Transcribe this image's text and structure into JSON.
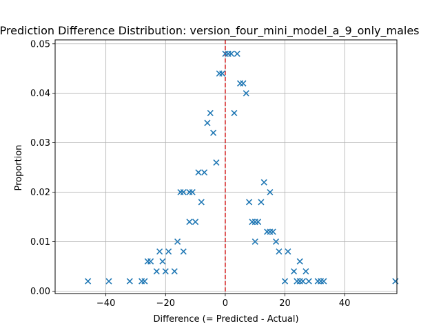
{
  "chart_data": {
    "type": "scatter",
    "title": "Prediction Difference Distribution: version_four_mini_model_a_9_only_males",
    "xlabel": "Difference (= Predicted - Actual)",
    "ylabel": "Proportion",
    "xlim": [
      -57,
      57.5
    ],
    "ylim": [
      -0.0005,
      0.0508
    ],
    "xticks": [
      -40,
      -20,
      0,
      20,
      40
    ],
    "yticks": [
      0.0,
      0.01,
      0.02,
      0.03,
      0.04,
      0.05
    ],
    "ytick_labels": [
      "0.00",
      "0.01",
      "0.02",
      "0.03",
      "0.04",
      "0.05"
    ],
    "grid": true,
    "marker": "x",
    "color": "#1f77b4",
    "reference_line": {
      "x": 0,
      "color": "#d62728",
      "style": "dashed"
    },
    "points": [
      {
        "x": -46,
        "y": 0.002
      },
      {
        "x": -39,
        "y": 0.002
      },
      {
        "x": -32,
        "y": 0.002
      },
      {
        "x": -28,
        "y": 0.002
      },
      {
        "x": -27,
        "y": 0.002
      },
      {
        "x": -26,
        "y": 0.006
      },
      {
        "x": -25,
        "y": 0.006
      },
      {
        "x": -23,
        "y": 0.004
      },
      {
        "x": -22,
        "y": 0.008
      },
      {
        "x": -21,
        "y": 0.006
      },
      {
        "x": -20,
        "y": 0.004
      },
      {
        "x": -19,
        "y": 0.008
      },
      {
        "x": -17,
        "y": 0.004
      },
      {
        "x": -16,
        "y": 0.01
      },
      {
        "x": -15,
        "y": 0.02
      },
      {
        "x": -14,
        "y": 0.008
      },
      {
        "x": -14,
        "y": 0.02
      },
      {
        "x": -12,
        "y": 0.02
      },
      {
        "x": -12,
        "y": 0.014
      },
      {
        "x": -11,
        "y": 0.02
      },
      {
        "x": -10,
        "y": 0.014
      },
      {
        "x": -9,
        "y": 0.024
      },
      {
        "x": -8,
        "y": 0.018
      },
      {
        "x": -7,
        "y": 0.024
      },
      {
        "x": -6,
        "y": 0.034
      },
      {
        "x": -5,
        "y": 0.036
      },
      {
        "x": -4,
        "y": 0.032
      },
      {
        "x": -3,
        "y": 0.026
      },
      {
        "x": -2,
        "y": 0.044
      },
      {
        "x": -1,
        "y": 0.044
      },
      {
        "x": 0,
        "y": 0.048
      },
      {
        "x": 1,
        "y": 0.048
      },
      {
        "x": 2,
        "y": 0.048
      },
      {
        "x": 3,
        "y": 0.036
      },
      {
        "x": 4,
        "y": 0.048
      },
      {
        "x": 5,
        "y": 0.042
      },
      {
        "x": 6,
        "y": 0.042
      },
      {
        "x": 7,
        "y": 0.04
      },
      {
        "x": 8,
        "y": 0.018
      },
      {
        "x": 9,
        "y": 0.014
      },
      {
        "x": 10,
        "y": 0.01
      },
      {
        "x": 10,
        "y": 0.014
      },
      {
        "x": 11,
        "y": 0.014
      },
      {
        "x": 12,
        "y": 0.018
      },
      {
        "x": 13,
        "y": 0.022
      },
      {
        "x": 14,
        "y": 0.012
      },
      {
        "x": 15,
        "y": 0.02
      },
      {
        "x": 15,
        "y": 0.012
      },
      {
        "x": 16,
        "y": 0.012
      },
      {
        "x": 17,
        "y": 0.01
      },
      {
        "x": 18,
        "y": 0.008
      },
      {
        "x": 20,
        "y": 0.002
      },
      {
        "x": 21,
        "y": 0.008
      },
      {
        "x": 23,
        "y": 0.004
      },
      {
        "x": 24,
        "y": 0.002
      },
      {
        "x": 25,
        "y": 0.006
      },
      {
        "x": 25,
        "y": 0.002
      },
      {
        "x": 26,
        "y": 0.002
      },
      {
        "x": 27,
        "y": 0.004
      },
      {
        "x": 28,
        "y": 0.002
      },
      {
        "x": 31,
        "y": 0.002
      },
      {
        "x": 32,
        "y": 0.002
      },
      {
        "x": 33,
        "y": 0.002
      },
      {
        "x": 57,
        "y": 0.002
      }
    ]
  }
}
